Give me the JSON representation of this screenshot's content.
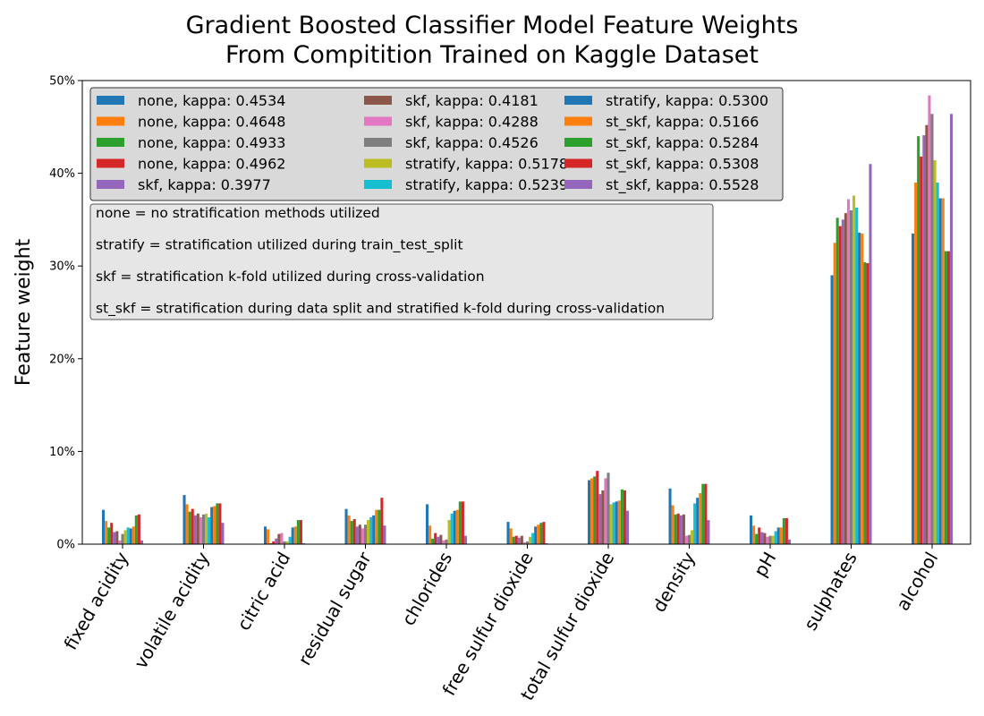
{
  "chart_data": {
    "type": "bar",
    "title_lines": [
      "Gradient Boosted Classifier Model Feature Weights",
      "From Compitition Trained on Kaggle Dataset"
    ],
    "xlabel": "",
    "ylabel": "Feature weight",
    "ylim": [
      0,
      0.5
    ],
    "yticks": [
      0,
      0.1,
      0.2,
      0.3,
      0.4,
      0.5
    ],
    "ytick_labels": [
      "0%",
      "10%",
      "20%",
      "30%",
      "40%",
      "50%"
    ],
    "grid": false,
    "legend_position": "upper-left",
    "categories": [
      "fixed acidity",
      "volatile acidity",
      "citric acid",
      "residual sugar",
      "chlorides",
      "free sulfur dioxide",
      "total sulfur dioxide",
      "density",
      "pH",
      "sulphates",
      "alcohol"
    ],
    "series": [
      {
        "name": "none, kappa: 0.4534",
        "color": "#1f77b4",
        "values": [
          0.037,
          0.053,
          0.019,
          0.038,
          0.043,
          0.024,
          0.069,
          0.06,
          0.031,
          0.29,
          0.335
        ]
      },
      {
        "name": "none, kappa: 0.4648",
        "color": "#ff7f0e",
        "values": [
          0.025,
          0.043,
          0.016,
          0.031,
          0.02,
          0.017,
          0.071,
          0.042,
          0.02,
          0.325,
          0.39
        ]
      },
      {
        "name": "none, kappa: 0.4933",
        "color": "#2ca02c",
        "values": [
          0.018,
          0.035,
          0.001,
          0.025,
          0.006,
          0.008,
          0.073,
          0.032,
          0.011,
          0.352,
          0.44
        ]
      },
      {
        "name": "none, kappa: 0.4962",
        "color": "#d62728",
        "values": [
          0.023,
          0.038,
          0.003,
          0.027,
          0.012,
          0.009,
          0.079,
          0.033,
          0.018,
          0.343,
          0.418
        ]
      },
      {
        "name": "skf, kappa: 0.3977",
        "color": "#9467bd",
        "values": [
          0.013,
          0.031,
          0.006,
          0.019,
          0.008,
          0.007,
          0.054,
          0.031,
          0.013,
          0.35,
          0.441
        ]
      },
      {
        "name": "skf, kappa: 0.4181",
        "color": "#8c564b",
        "values": [
          0.014,
          0.033,
          0.011,
          0.021,
          0.01,
          0.009,
          0.058,
          0.032,
          0.012,
          0.357,
          0.452
        ]
      },
      {
        "name": "skf, kappa: 0.4288",
        "color": "#e377c2",
        "values": [
          0.004,
          0.029,
          0.012,
          0.017,
          0.004,
          0.002,
          0.071,
          0.009,
          0.008,
          0.372,
          0.484
        ]
      },
      {
        "name": "skf, kappa: 0.4526",
        "color": "#7f7f7f",
        "values": [
          0.011,
          0.032,
          0.003,
          0.021,
          0.005,
          0.003,
          0.077,
          0.01,
          0.009,
          0.36,
          0.464
        ]
      },
      {
        "name": "stratify, kappa: 0.5178",
        "color": "#bcbd22",
        "values": [
          0.015,
          0.033,
          0.003,
          0.026,
          0.026,
          0.008,
          0.043,
          0.015,
          0.009,
          0.376,
          0.414
        ]
      },
      {
        "name": "stratify, kappa: 0.5239",
        "color": "#17becf",
        "values": [
          0.018,
          0.029,
          0.008,
          0.029,
          0.033,
          0.012,
          0.045,
          0.044,
          0.014,
          0.363,
          0.39
        ]
      },
      {
        "name": "stratify, kappa: 0.5300",
        "color": "#1f77b4",
        "values": [
          0.017,
          0.04,
          0.018,
          0.031,
          0.036,
          0.019,
          0.046,
          0.05,
          0.018,
          0.336,
          0.373
        ]
      },
      {
        "name": "st_skf, kappa: 0.5166",
        "color": "#ff7f0e",
        "values": [
          0.019,
          0.041,
          0.019,
          0.037,
          0.037,
          0.021,
          0.047,
          0.055,
          0.018,
          0.335,
          0.373
        ]
      },
      {
        "name": "st_skf, kappa: 0.5284",
        "color": "#2ca02c",
        "values": [
          0.031,
          0.044,
          0.026,
          0.037,
          0.046,
          0.023,
          0.059,
          0.065,
          0.028,
          0.304,
          0.316
        ]
      },
      {
        "name": "st_skf, kappa: 0.5308",
        "color": "#d62728",
        "values": [
          0.032,
          0.044,
          0.026,
          0.05,
          0.046,
          0.024,
          0.058,
          0.065,
          0.028,
          0.303,
          0.316
        ]
      },
      {
        "name": "st_skf, kappa: 0.5528",
        "color": "#9467bd",
        "values": [
          0.004,
          0.023,
          0.001,
          0.02,
          0.009,
          0.001,
          0.036,
          0.026,
          0.005,
          0.41,
          0.464
        ]
      }
    ],
    "annotation_lines": [
      "none = no stratification methods utilized",
      "stratify = stratification utilized during train_test_split",
      "skf = stratification k-fold utilized during cross-validation",
      "st_skf = stratification during data split and stratified k-fold during cross-validation"
    ]
  }
}
